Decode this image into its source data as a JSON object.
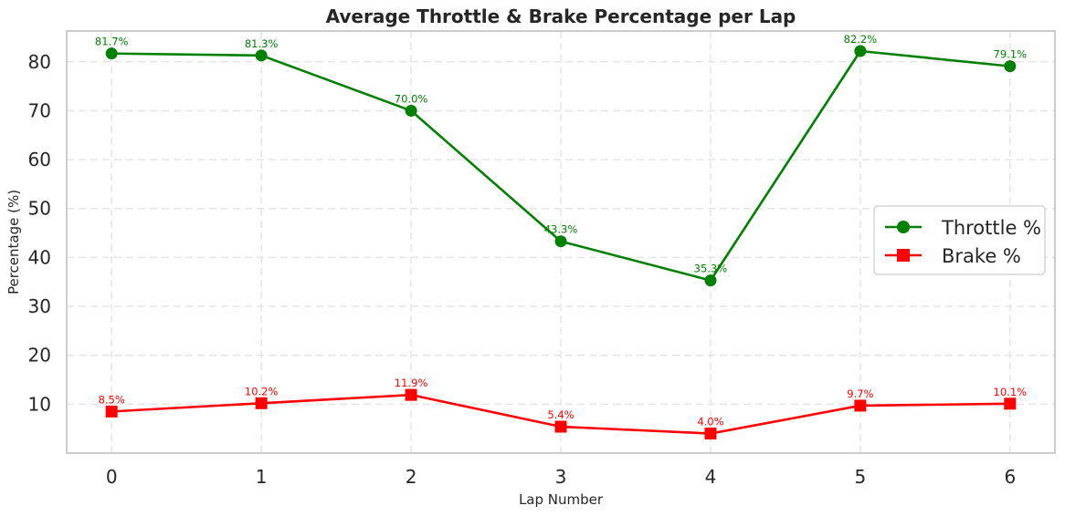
{
  "chart_data": {
    "type": "line",
    "title": "Average Throttle & Brake Percentage per Lap",
    "xlabel": "Lap Number",
    "ylabel": "Percentage (%)",
    "x": [
      0,
      1,
      2,
      3,
      4,
      5,
      6
    ],
    "xlim": [
      -0.3,
      6.3
    ],
    "ylim": [
      0,
      86.3
    ],
    "yticks": [
      10,
      20,
      30,
      40,
      50,
      60,
      70,
      80
    ],
    "grid": true,
    "legend_position": "center-right",
    "series": [
      {
        "name": "Throttle %",
        "color": "#008000",
        "marker": "circle",
        "values": [
          81.7,
          81.3,
          70.0,
          43.3,
          35.3,
          82.2,
          79.1
        ],
        "labels": [
          "81.7%",
          "81.3%",
          "70.0%",
          "43.3%",
          "35.3%",
          "82.2%",
          "79.1%"
        ]
      },
      {
        "name": "Brake %",
        "color": "#ff0000",
        "marker": "square",
        "values": [
          8.5,
          10.2,
          11.9,
          5.4,
          4.0,
          9.7,
          10.1
        ],
        "labels": [
          "8.5%",
          "10.2%",
          "11.9%",
          "5.4%",
          "4.0%",
          "9.7%",
          "10.1%"
        ]
      }
    ]
  }
}
